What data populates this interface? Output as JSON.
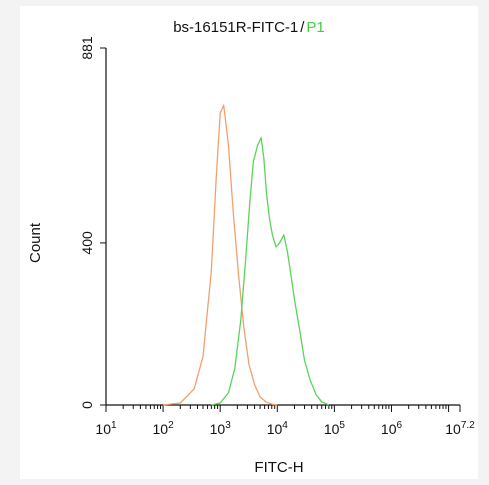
{
  "chart_data": {
    "type": "line",
    "title_prefix": "bs-16151R-FITC-1",
    "title_sep": "/",
    "title_gate": "P1",
    "xlabel": "FITC-H",
    "ylabel": "Count",
    "x_scale": "log",
    "xlim": [
      10,
      15848931.92
    ],
    "ylim": [
      0,
      881
    ],
    "x_tick_labels": [
      {
        "base": "10",
        "exp": "1"
      },
      {
        "base": "10",
        "exp": "2"
      },
      {
        "base": "10",
        "exp": "3"
      },
      {
        "base": "10",
        "exp": "4"
      },
      {
        "base": "10",
        "exp": "5"
      },
      {
        "base": "10",
        "exp": "6"
      },
      {
        "base": "10",
        "exp": "7.2"
      }
    ],
    "y_ticks": [
      {
        "value": 0,
        "label": "0"
      },
      {
        "value": 400,
        "label": "400"
      },
      {
        "value": 881,
        "label": "881"
      }
    ],
    "grid": false,
    "series": [
      {
        "color": "#f0a070",
        "x": [
          100,
          200,
          350,
          500,
          700,
          850,
          1000,
          1150,
          1400,
          1700,
          2100,
          2600,
          3200,
          4000,
          5000,
          6300,
          8000,
          10000
        ],
        "y": [
          0,
          5,
          40,
          120,
          330,
          560,
          720,
          740,
          640,
          470,
          320,
          190,
          100,
          50,
          20,
          8,
          2,
          0
        ]
      },
      {
        "color": "#5ad45a",
        "x": [
          700,
          1000,
          1400,
          1800,
          2300,
          2800,
          3300,
          3800,
          4500,
          5200,
          5800,
          6500,
          7300,
          8200,
          9500,
          11000,
          13000,
          15000,
          17000,
          20000,
          25000,
          30000,
          38000,
          48000,
          60000,
          80000
        ],
        "y": [
          0,
          5,
          30,
          90,
          210,
          360,
          500,
          600,
          640,
          660,
          610,
          520,
          460,
          420,
          390,
          400,
          420,
          380,
          330,
          260,
          180,
          110,
          60,
          25,
          8,
          0
        ]
      }
    ]
  }
}
